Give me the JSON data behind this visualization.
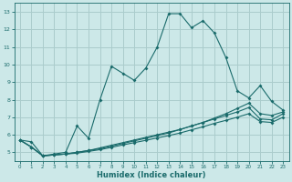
{
  "xlabel": "Humidex (Indice chaleur)",
  "bg_color": "#cce8e8",
  "grid_color": "#aacccc",
  "line_color": "#1a6b6b",
  "xlim": [
    -0.5,
    23.5
  ],
  "ylim": [
    4.5,
    13.5
  ],
  "yticks": [
    5,
    6,
    7,
    8,
    9,
    10,
    11,
    12,
    13
  ],
  "xticks": [
    0,
    1,
    2,
    3,
    4,
    5,
    6,
    7,
    8,
    9,
    10,
    11,
    12,
    13,
    14,
    15,
    16,
    17,
    18,
    19,
    20,
    21,
    22,
    23
  ],
  "series1_x": [
    0,
    1,
    2,
    3,
    4,
    5,
    6,
    7,
    8,
    9,
    10,
    11,
    12,
    13,
    14,
    15,
    16,
    17,
    18,
    19,
    20,
    21,
    22,
    23
  ],
  "series1_y": [
    5.7,
    5.6,
    4.8,
    4.9,
    5.0,
    6.5,
    5.8,
    8.0,
    9.9,
    9.5,
    9.1,
    9.8,
    11.0,
    12.9,
    12.9,
    12.1,
    12.5,
    11.8,
    10.4,
    8.5,
    8.1,
    8.8,
    7.9,
    7.4
  ],
  "series2_x": [
    0,
    1,
    2,
    3,
    4,
    5,
    6,
    7,
    8,
    9,
    10,
    11,
    12,
    13,
    14,
    15,
    16,
    17,
    18,
    19,
    20,
    21,
    22,
    23
  ],
  "series2_y": [
    5.7,
    5.3,
    4.8,
    4.85,
    4.9,
    5.0,
    5.1,
    5.25,
    5.4,
    5.55,
    5.7,
    5.85,
    6.0,
    6.15,
    6.3,
    6.5,
    6.7,
    6.95,
    7.2,
    7.5,
    7.8,
    7.2,
    7.1,
    7.3
  ],
  "series3_x": [
    0,
    1,
    2,
    3,
    4,
    5,
    6,
    7,
    8,
    9,
    10,
    11,
    12,
    13,
    14,
    15,
    16,
    17,
    18,
    19,
    20,
    21,
    22,
    23
  ],
  "series3_y": [
    5.7,
    5.3,
    4.8,
    4.85,
    4.9,
    5.0,
    5.1,
    5.2,
    5.35,
    5.5,
    5.65,
    5.8,
    5.95,
    6.1,
    6.3,
    6.5,
    6.7,
    6.9,
    7.1,
    7.3,
    7.55,
    6.9,
    6.85,
    7.2
  ],
  "series4_x": [
    0,
    1,
    2,
    3,
    4,
    5,
    6,
    7,
    8,
    9,
    10,
    11,
    12,
    13,
    14,
    15,
    16,
    17,
    18,
    19,
    20,
    21,
    22,
    23
  ],
  "series4_y": [
    5.7,
    5.3,
    4.8,
    4.85,
    4.9,
    4.95,
    5.05,
    5.15,
    5.28,
    5.42,
    5.55,
    5.68,
    5.82,
    5.95,
    6.1,
    6.28,
    6.45,
    6.65,
    6.82,
    7.0,
    7.2,
    6.75,
    6.7,
    7.0
  ]
}
